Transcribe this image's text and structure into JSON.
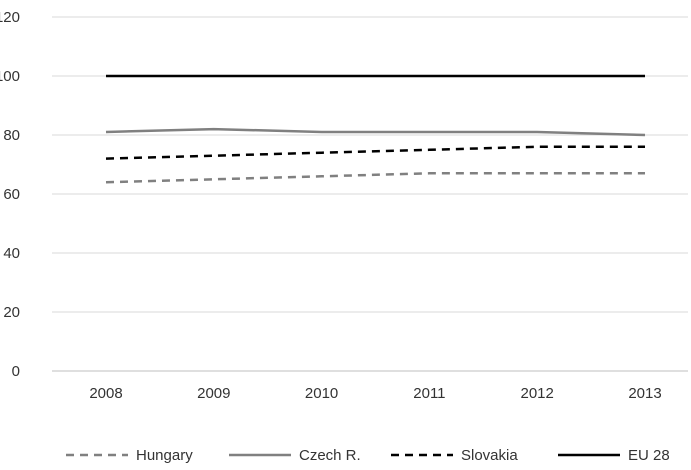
{
  "chart_data": {
    "type": "line",
    "title": "",
    "xlabel": "",
    "ylabel": "",
    "categories": [
      "2008",
      "2009",
      "2010",
      "2011",
      "2012",
      "2013"
    ],
    "ylim": [
      0,
      120
    ],
    "yticks": [
      0,
      20,
      40,
      60,
      80,
      100,
      120
    ],
    "grid": true,
    "legend_position": "bottom",
    "series": [
      {
        "name": "Hungary",
        "values": [
          64,
          65,
          66,
          67,
          67,
          67
        ],
        "color": "#808080",
        "dashed": true
      },
      {
        "name": "Czech R.",
        "values": [
          81,
          82,
          81,
          81,
          81,
          80
        ],
        "color": "#808080",
        "dashed": false
      },
      {
        "name": "Slovakia",
        "values": [
          72,
          73,
          74,
          75,
          76,
          76
        ],
        "color": "#000000",
        "dashed": true
      },
      {
        "name": "EU 28",
        "values": [
          100,
          100,
          100,
          100,
          100,
          100
        ],
        "color": "#000000",
        "dashed": false
      }
    ]
  }
}
